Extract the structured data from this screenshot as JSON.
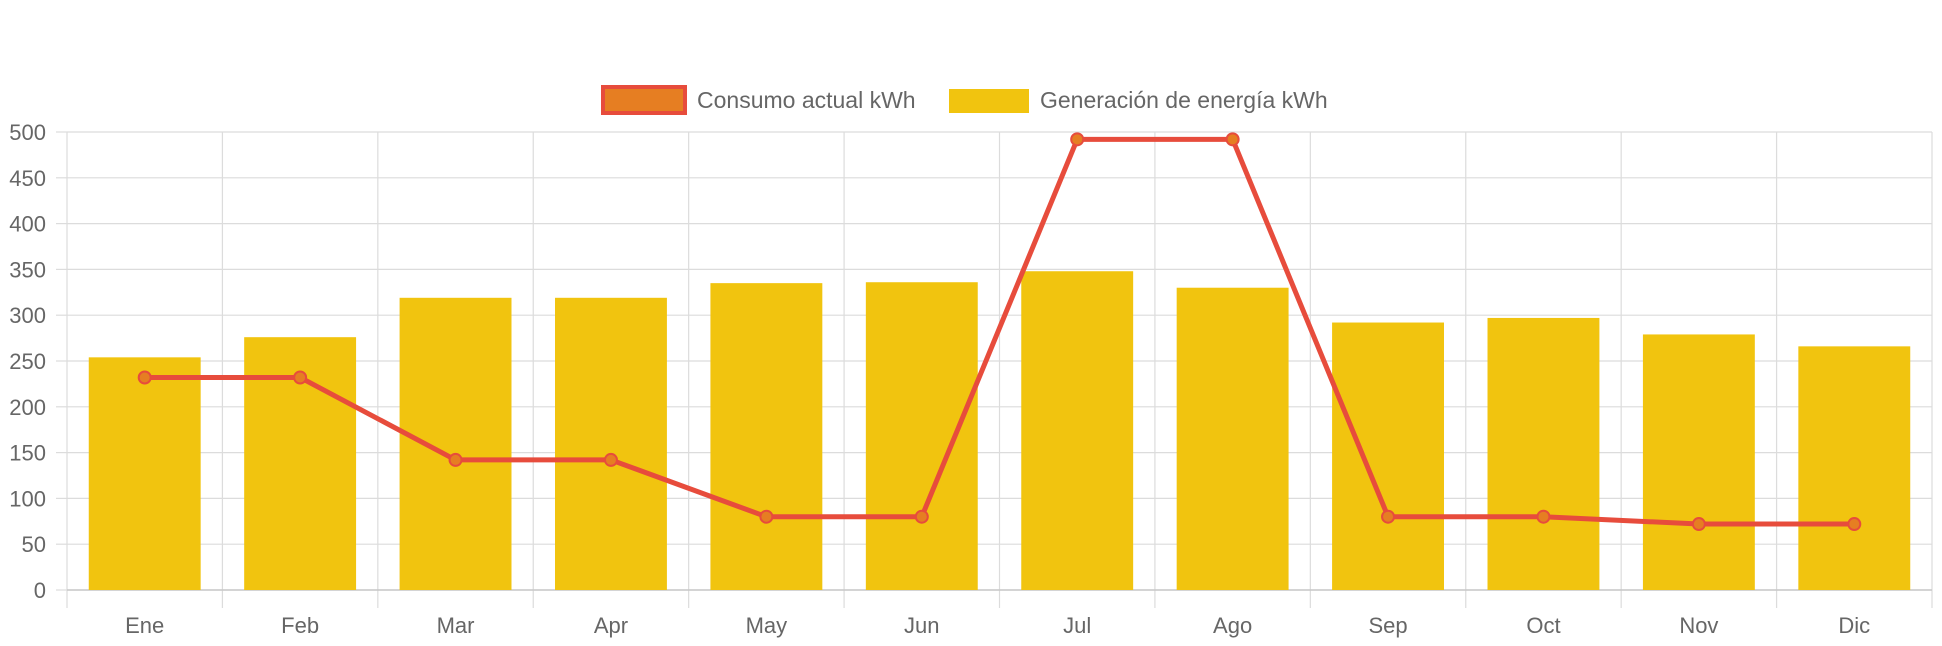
{
  "chart_data": {
    "type": "bar",
    "title": "",
    "xlabel": "",
    "ylabel": "",
    "ylim": [
      0,
      500
    ],
    "yticks": [
      0,
      50,
      100,
      150,
      200,
      250,
      300,
      350,
      400,
      450,
      500
    ],
    "grid": true,
    "legend_position": "top-center",
    "categories": [
      "Ene",
      "Feb",
      "Mar",
      "Apr",
      "May",
      "Jun",
      "Jul",
      "Ago",
      "Sep",
      "Oct",
      "Nov",
      "Dic"
    ],
    "series": [
      {
        "name": "Consumo actual kWh",
        "type": "line",
        "color": "#e74c3c",
        "point_color": "#e67e22",
        "values": [
          232,
          232,
          142,
          142,
          80,
          80,
          492,
          492,
          80,
          80,
          72,
          72
        ]
      },
      {
        "name": "Generación de energía kWh",
        "type": "bar",
        "color": "#f1c40f",
        "values": [
          254,
          276,
          319,
          319,
          335,
          336,
          348,
          330,
          292,
          297,
          279,
          266
        ]
      }
    ]
  }
}
